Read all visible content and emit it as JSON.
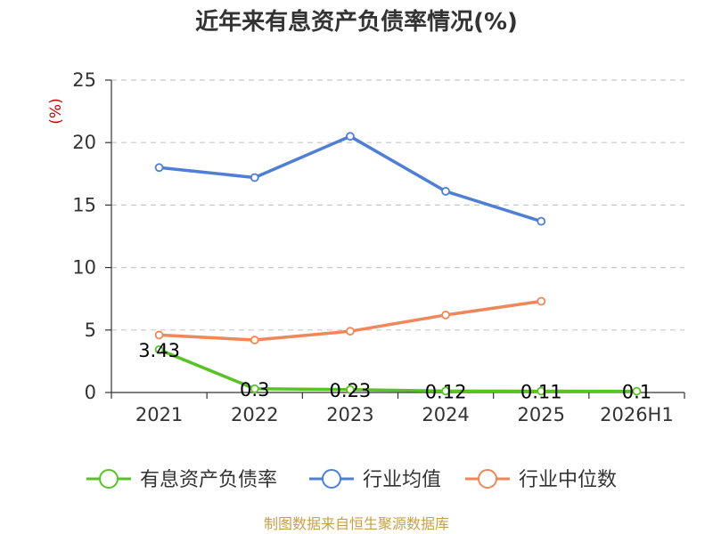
{
  "chart_data": {
    "type": "line",
    "title": "近年来有息资产负债率情况(%)",
    "unit_label": "(%)",
    "categories": [
      "2021",
      "2022",
      "2023",
      "2024",
      "2025",
      "2026H1"
    ],
    "ylim": [
      0,
      25
    ],
    "yticks": [
      0,
      5,
      10,
      15,
      20,
      25
    ],
    "grid": true,
    "legend_position": "bottom",
    "series": [
      {
        "name": "有息资产负债率",
        "color": "#5ac229",
        "values": [
          3.43,
          0.3,
          0.23,
          0.12,
          0.11,
          0.1
        ],
        "labels": [
          "3.43",
          "0.3",
          "0.23",
          "0.12",
          "0.11",
          "0.1"
        ]
      },
      {
        "name": "行业均值",
        "color": "#4e7fd4",
        "values": [
          18.0,
          17.2,
          20.5,
          16.1,
          13.7,
          null
        ]
      },
      {
        "name": "行业中位数",
        "color": "#f0875a",
        "values": [
          4.6,
          4.2,
          4.9,
          6.2,
          7.3,
          null
        ]
      }
    ],
    "source": "制图数据来自恒生聚源数据库"
  }
}
